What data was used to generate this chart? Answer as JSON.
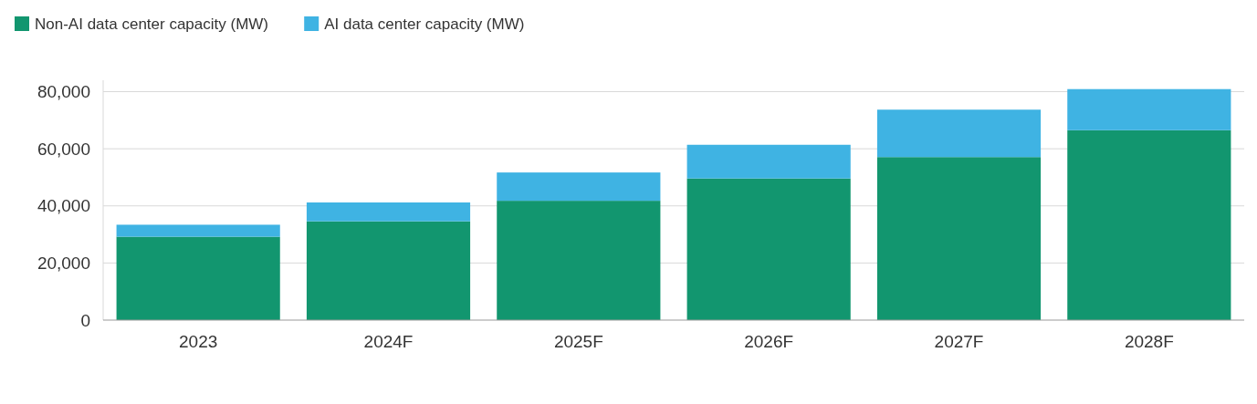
{
  "chart_data": {
    "type": "bar",
    "stacked": true,
    "categories": [
      "2023",
      "2024F",
      "2025F",
      "2026F",
      "2027F",
      "2028F"
    ],
    "series": [
      {
        "name": "Non-AI data center capacity (MW)",
        "color": "#12966f",
        "values": [
          29200,
          34600,
          41800,
          49600,
          57100,
          66500
        ]
      },
      {
        "name": "AI data center capacity (MW)",
        "color": "#3fb3e3",
        "values": [
          4200,
          6600,
          9900,
          11800,
          16600,
          14400
        ]
      }
    ],
    "ylim": [
      0,
      84000
    ],
    "yticks": [
      {
        "value": 0,
        "label": "0"
      },
      {
        "value": 20000,
        "label": "20,000"
      },
      {
        "value": 40000,
        "label": "40,000"
      },
      {
        "value": 60000,
        "label": "60,000"
      },
      {
        "value": 80000,
        "label": "80,000"
      }
    ],
    "grid": "y",
    "legend": "top left"
  }
}
